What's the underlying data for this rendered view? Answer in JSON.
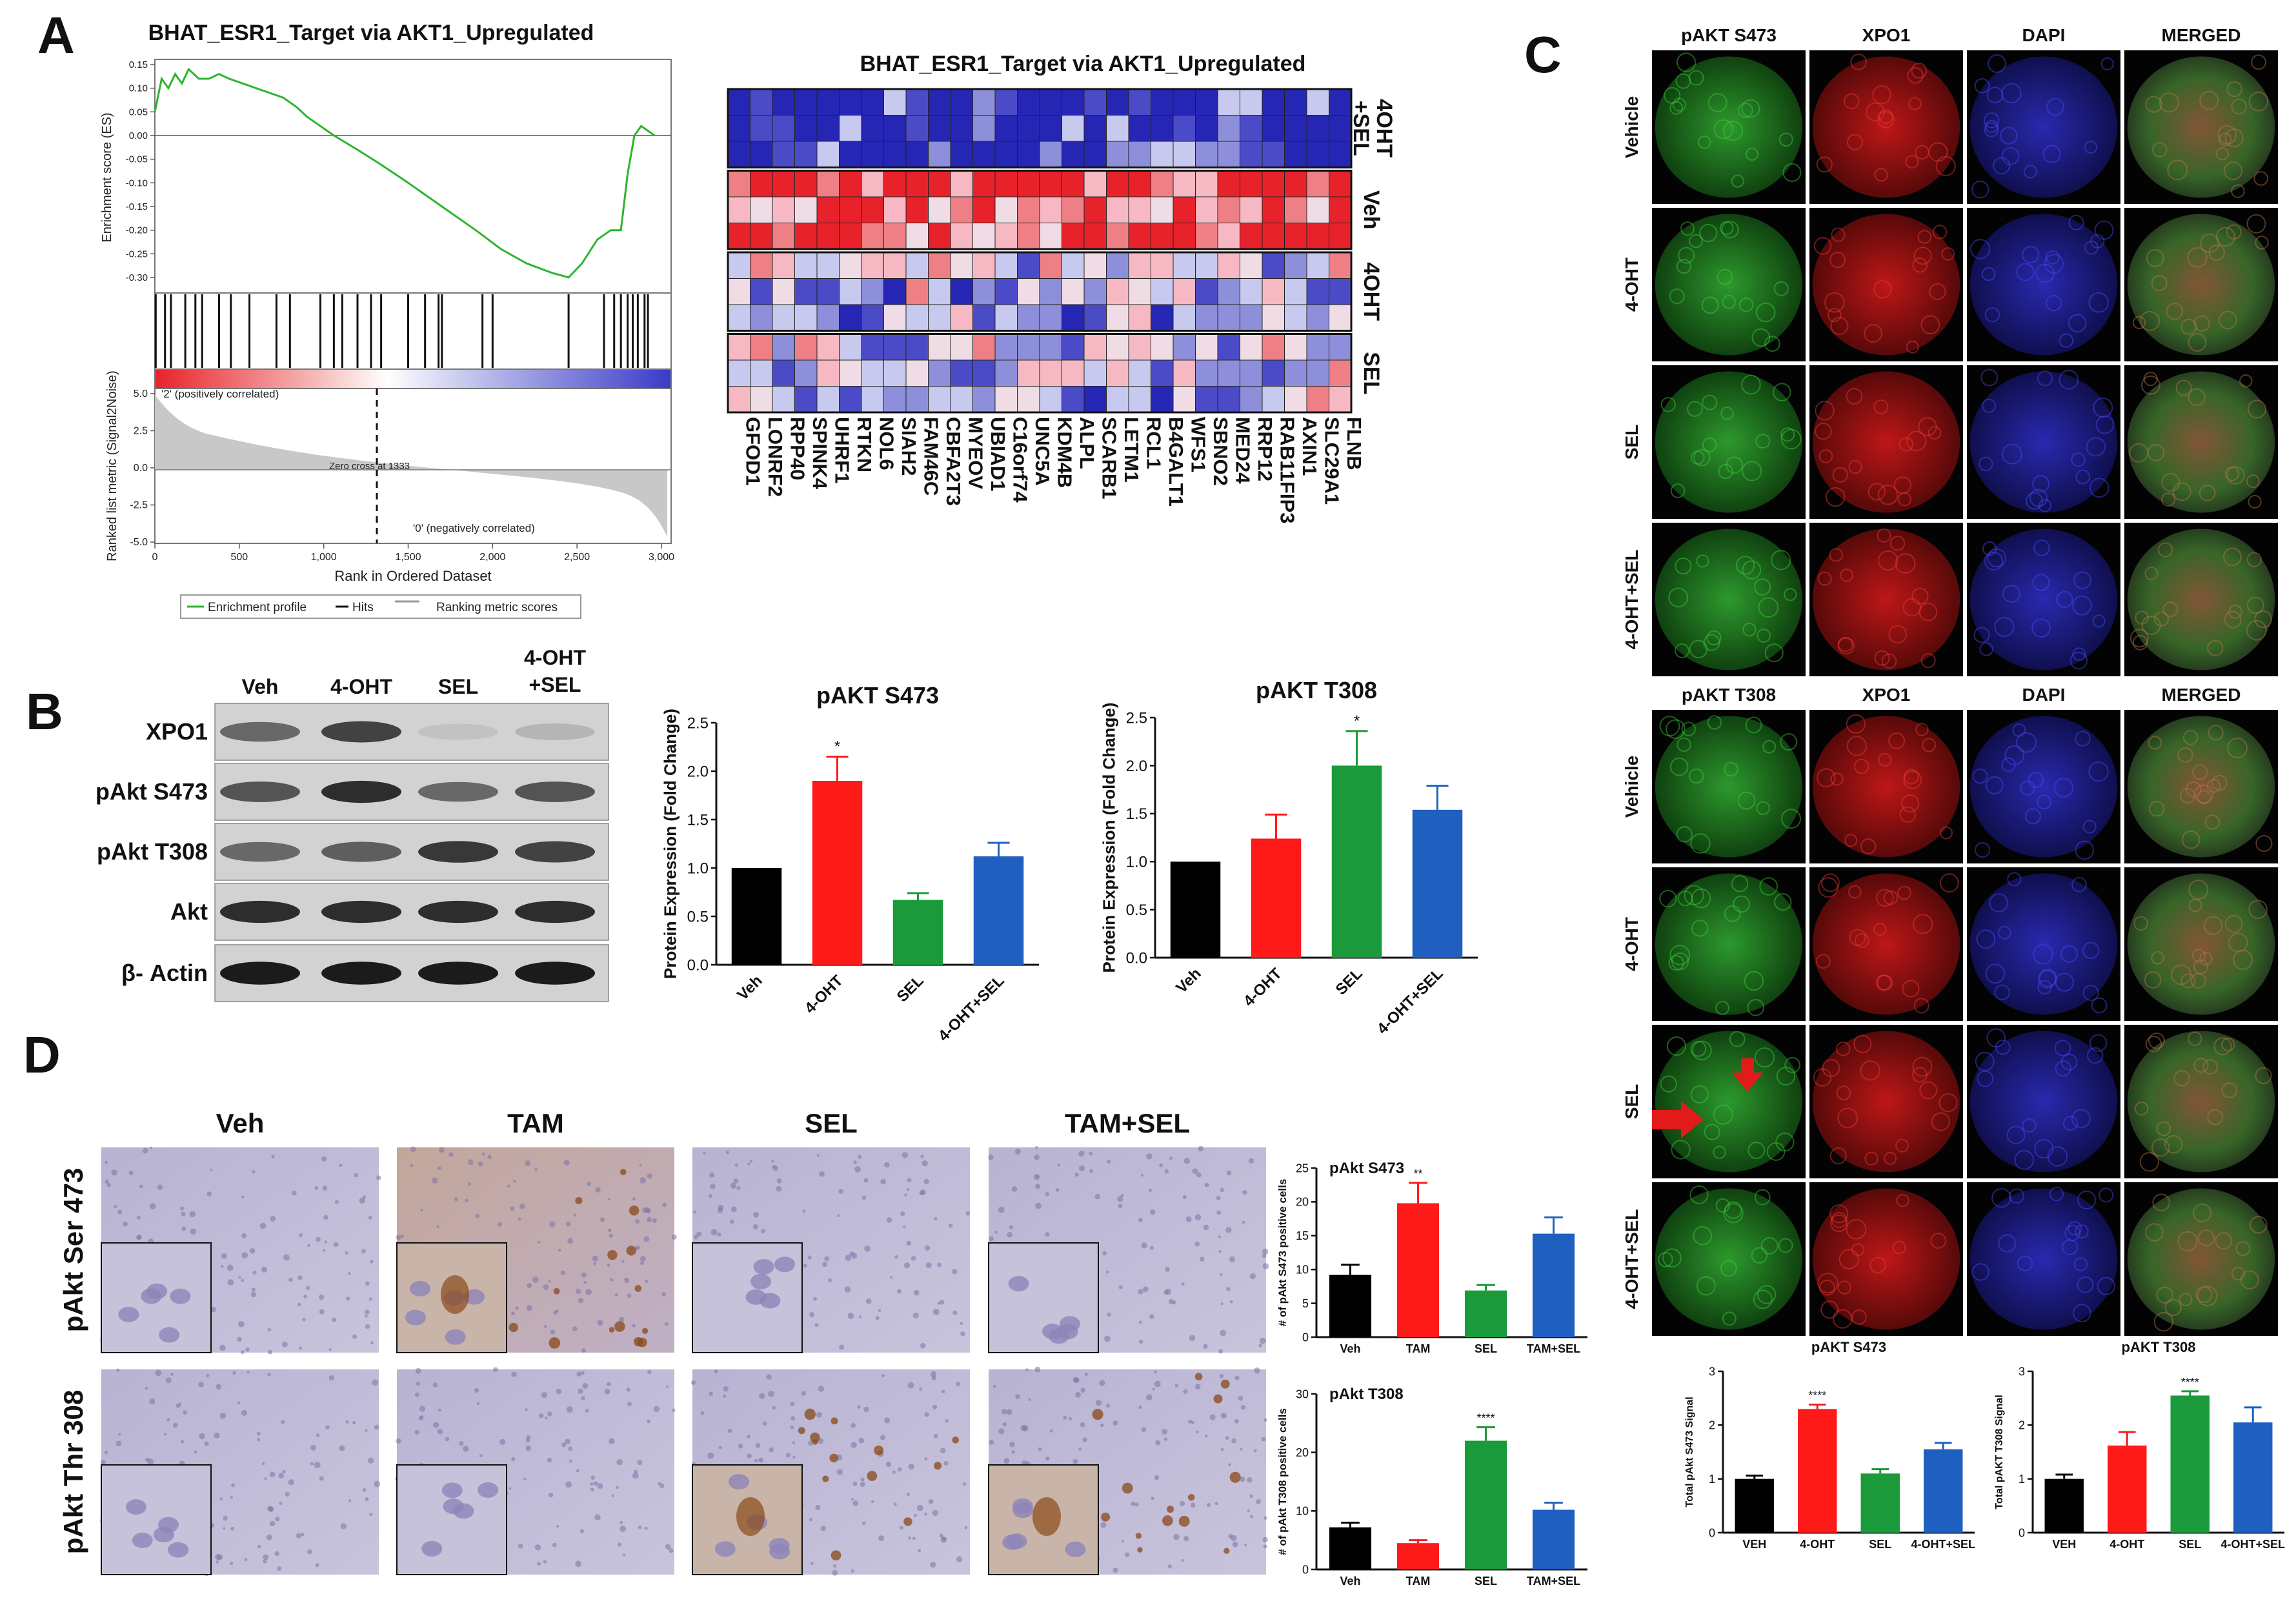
{
  "panel_labels": [
    "A",
    "B",
    "C",
    "D"
  ],
  "colors": {
    "veh": "#000000",
    "oht": "#ff1a1a",
    "sel": "#1a9a3a",
    "combo": "#1f5fbf",
    "es_line": "#2db52d",
    "heat_hi": "#e8222a",
    "heat_lo": "#2424b0"
  },
  "panelA": {
    "gsea_title": "BHAT_ESR1_Target via AKT1_Upregulated",
    "es_ylabel": "Enrichment score (ES)",
    "rank_ylabel": "Ranked list metric (Signal2Noise)",
    "xlabel": "Rank in Ordered Dataset",
    "pos_label": "'2' (positively correlated)",
    "neg_label": "'0' (negatively correlated)",
    "zero_cross": "Zero cross at 1333",
    "legend": [
      "Enrichment profile",
      "Hits",
      "Ranking metric scores"
    ],
    "es_ticks": [
      "0.15",
      "0.10",
      "0.05",
      "0.00",
      "-0.05",
      "-0.10",
      "-0.15",
      "-0.20",
      "-0.25",
      "-0.30"
    ],
    "rank_ticks": [
      "5.0",
      "2.5",
      "0.0",
      "-2.5",
      "-5.0"
    ],
    "x_ticks": [
      "0",
      "500",
      "1,000",
      "1,500",
      "2,000",
      "2,500",
      "3,000"
    ],
    "heatmap_title": "BHAT_ESR1_Target via AKT1_Upregulated",
    "heatmap_groups": [
      "4OHT +SEL",
      "Veh",
      "4OHT",
      "SEL"
    ],
    "genes": [
      "GFOD1",
      "LONRF2",
      "RPP40",
      "SPINK4",
      "UHRF1",
      "RTKN",
      "NOL6",
      "SIAH2",
      "FAM46C",
      "CBFA2T3",
      "MYEOV",
      "UBIAD1",
      "C16orf74",
      "UNC5A",
      "KDM4B",
      "ALPL",
      "SCARB1",
      "LETM1",
      "RCL1",
      "B4GALT1",
      "WFS1",
      "SBNO2",
      "MED24",
      "RRP12",
      "RAB11FIP3",
      "AXIN1",
      "SLC29A1",
      "FLNB"
    ]
  },
  "panelB": {
    "lanes": [
      "Veh",
      "4-OHT",
      "SEL",
      "4-OHT\n+SEL"
    ],
    "lane_line1": [
      "Veh",
      "4-OHT",
      "SEL",
      "4-OHT"
    ],
    "lane_line2": [
      "",
      "",
      "",
      "+SEL"
    ],
    "rows": [
      "XPO1",
      "pAkt S473",
      "pAkt T308",
      "Akt",
      "β- Actin"
    ]
  },
  "panelC": {
    "top_columns": [
      "pAKT S473",
      "XPO1",
      "DAPI",
      "MERGED"
    ],
    "bottom_columns": [
      "pAKT T308",
      "XPO1",
      "DAPI",
      "MERGED"
    ],
    "rows": [
      "Vehicle",
      "4-OHT",
      "SEL",
      "4-OHT+SEL"
    ]
  },
  "panelD": {
    "columns": [
      "Veh",
      "TAM",
      "SEL",
      "TAM+SEL"
    ],
    "rows": [
      "pAkt Ser 473",
      "pAkt Thr 308"
    ]
  },
  "chart_data": [
    {
      "id": "B-S473",
      "type": "bar",
      "title": "pAKT S473",
      "ylabel": "Protein Expression (Fold Change)",
      "categories": [
        "Veh",
        "4-OHT",
        "SEL",
        "4-OHT+SEL"
      ],
      "values": [
        1.0,
        1.9,
        0.67,
        1.12
      ],
      "errors": [
        0,
        0.25,
        0.07,
        0.14
      ],
      "significance": [
        "",
        "*",
        "",
        ""
      ],
      "ylim": [
        0,
        2.5
      ],
      "yticks": [
        "0.0",
        "0.5",
        "1.0",
        "1.5",
        "2.0",
        "2.5"
      ]
    },
    {
      "id": "B-T308",
      "type": "bar",
      "title": "pAKT T308",
      "ylabel": "Protein Expression (Fold Change)",
      "categories": [
        "Veh",
        "4-OHT",
        "SEL",
        "4-OHT+SEL"
      ],
      "values": [
        1.0,
        1.24,
        2.0,
        1.54
      ],
      "errors": [
        0,
        0.25,
        0.36,
        0.25
      ],
      "significance": [
        "",
        "",
        "*",
        ""
      ],
      "ylim": [
        0,
        2.5
      ],
      "yticks": [
        "0.0",
        "0.5",
        "1.0",
        "1.5",
        "2.0",
        "2.5"
      ]
    },
    {
      "id": "C-S473",
      "type": "bar",
      "title": "pAKT S473",
      "ylabel": "Total pAkt S473 Signal",
      "categories": [
        "VEH",
        "4-OHT",
        "SEL",
        "4-OHT+SEL"
      ],
      "values": [
        1.0,
        2.3,
        1.1,
        1.55
      ],
      "errors": [
        0.06,
        0.08,
        0.08,
        0.12
      ],
      "significance": [
        "",
        "****",
        "",
        ""
      ],
      "ylim": [
        0,
        3
      ],
      "yticks": [
        "0",
        "1",
        "2",
        "3"
      ]
    },
    {
      "id": "C-T308",
      "type": "bar",
      "title": "pAKT T308",
      "ylabel": "Total pAKT T308 Signal",
      "categories": [
        "VEH",
        "4-OHT",
        "SEL",
        "4-OHT+SEL"
      ],
      "values": [
        1.0,
        1.62,
        2.55,
        2.05
      ],
      "errors": [
        0.08,
        0.25,
        0.08,
        0.28
      ],
      "significance": [
        "",
        "",
        "****",
        ""
      ],
      "ylim": [
        0,
        3
      ],
      "yticks": [
        "0",
        "1",
        "2",
        "3"
      ]
    },
    {
      "id": "D-S473",
      "type": "bar",
      "title": "pAkt S473",
      "ylabel": "# of pAkt S473 positive cells",
      "categories": [
        "Veh",
        "TAM",
        "SEL",
        "TAM+SEL"
      ],
      "values": [
        9.2,
        19.8,
        6.9,
        15.3
      ],
      "errors": [
        1.5,
        3.0,
        0.8,
        2.4
      ],
      "significance": [
        "",
        "**",
        "",
        ""
      ],
      "ylim": [
        0,
        25
      ],
      "yticks": [
        "0",
        "5",
        "10",
        "15",
        "20",
        "25"
      ]
    },
    {
      "id": "D-T308",
      "type": "bar",
      "title": "pAkt T308",
      "ylabel": "# of pAkt T308 positive cells",
      "categories": [
        "Veh",
        "TAM",
        "SEL",
        "TAM+SEL"
      ],
      "values": [
        7.2,
        4.5,
        22.0,
        10.2
      ],
      "errors": [
        0.8,
        0.5,
        2.3,
        1.2
      ],
      "significance": [
        "",
        "",
        "****",
        ""
      ],
      "ylim": [
        0,
        30
      ],
      "yticks": [
        "0",
        "10",
        "20",
        "30"
      ]
    }
  ]
}
